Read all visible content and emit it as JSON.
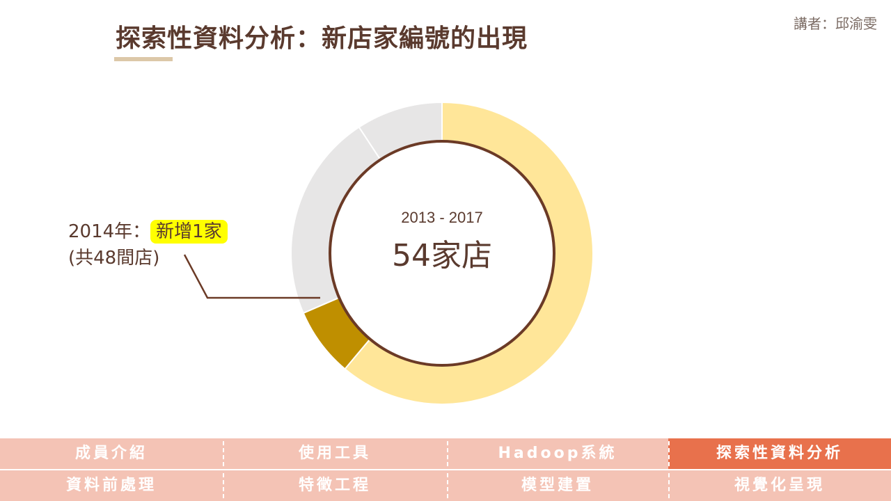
{
  "header": {
    "title": "探索性資料分析：新店家編號的出現",
    "speaker": "講者：邱渝雯"
  },
  "chart_data": {
    "type": "pie",
    "style": "donut",
    "center_label_small": "2013 - 2017",
    "center_label_large": "54家店",
    "slices": [
      {
        "value": 33,
        "color": "#ffe699"
      },
      {
        "value": 4,
        "color": "#bf8f00"
      },
      {
        "value": 12,
        "color": "#e7e6e6"
      },
      {
        "value": 5,
        "color": "#e7e6e6"
      }
    ],
    "slice_order_note": "",
    "annotation": {
      "line1": "2014年：",
      "highlight": "新增1家",
      "line2": "(共48間店)"
    }
  },
  "nav": {
    "row1": [
      "成員介紹",
      "使用工具",
      "Hadoop系統",
      "探索性資料分析"
    ],
    "row2": [
      "資料前處理",
      "特徵工程",
      "模型建置",
      "視覺化呈現"
    ],
    "active": "探索性資料分析"
  },
  "colors": {
    "primary_text": "#5a3a2e",
    "nav_bg": "#f4c3b5",
    "nav_active": "#e8714c",
    "highlight": "#ffff00"
  }
}
